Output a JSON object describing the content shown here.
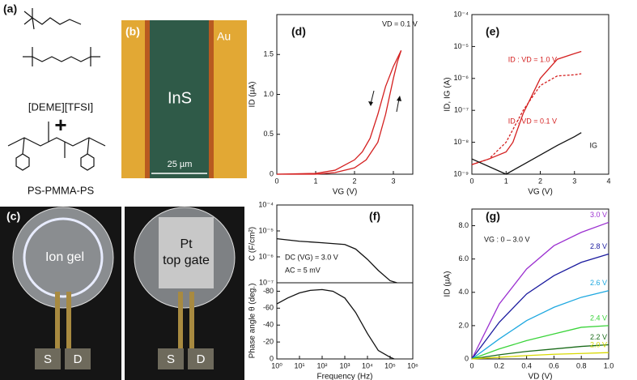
{
  "figure": {
    "panel_a": {
      "label": "(a)",
      "ionic_liquid": "[DEME][TFSI]",
      "plus": "+",
      "polymer": "PS-PMMA-PS"
    },
    "panel_b": {
      "label": "(b)",
      "material": "InS",
      "electrode": "Au",
      "scale": "25 µm"
    },
    "panel_c": {
      "label": "(c)",
      "left_text": "Ion gel",
      "right_text_1": "Pt",
      "right_text_2": "top gate",
      "source": "S",
      "drain": "D"
    }
  },
  "chart_data": [
    {
      "type": "line",
      "panel_label": "(d)",
      "annotations": [
        "VD = 0.1 V"
      ],
      "xlabel": "VG (V)",
      "ylabel": "ID (µA)",
      "xlim": [
        0,
        3.5
      ],
      "xticks": [
        0,
        1,
        2,
        3
      ],
      "ylim": [
        0,
        2
      ],
      "yticks": [
        0,
        0.5,
        {
          "value": 1,
          "label": "1.0"
        },
        1.5
      ],
      "series": [
        {
          "color": "#d42020",
          "x": [
            0,
            1,
            1.5,
            2,
            2.3,
            2.6,
            2.8,
            3.0,
            3.1,
            3.2
          ],
          "values": [
            0,
            0,
            0.02,
            0.08,
            0.18,
            0.4,
            0.75,
            1.2,
            1.4,
            1.55
          ]
        },
        {
          "color": "#d42020",
          "x": [
            3.2,
            3.0,
            2.8,
            2.6,
            2.4,
            2.2,
            2.0,
            1.5,
            1.0,
            0
          ],
          "values": [
            1.55,
            1.35,
            1.1,
            0.75,
            0.45,
            0.28,
            0.18,
            0.05,
            0.01,
            0
          ]
        }
      ]
    },
    {
      "type": "line",
      "panel_label": "(e)",
      "xlabel": "VG (V)",
      "ylabel": "ID, IG (A)",
      "ylog": true,
      "xlim": [
        0,
        4
      ],
      "xticks": [
        0,
        1,
        2,
        3,
        4
      ],
      "ylim": [
        1e-09,
        0.0001
      ],
      "yticks": [
        {
          "value": 1e-09,
          "label": "10⁻⁹"
        },
        {
          "value": 1e-08,
          "label": "10⁻⁸"
        },
        {
          "value": 1e-07,
          "label": "10⁻⁷"
        },
        {
          "value": 1e-06,
          "label": "10⁻⁶"
        },
        {
          "value": 1e-05,
          "label": "10⁻⁵"
        },
        {
          "value": 0.0001,
          "label": "10⁻⁴"
        }
      ],
      "series": [
        {
          "name": "ID : VD = 1.0 V",
          "color": "#d42020",
          "x": [
            0,
            0.5,
            1,
            1.2,
            1.5,
            2,
            2.5,
            3,
            3.2
          ],
          "values": [
            2e-09,
            3e-09,
            5e-09,
            1e-08,
            8e-08,
            1e-06,
            4e-06,
            6e-06,
            7e-06
          ]
        },
        {
          "name": "ID : VD = 0.1 V",
          "color": "#d42020",
          "dash": true,
          "x": [
            0,
            0.5,
            1,
            1.5,
            2,
            2.5,
            3,
            3.2
          ],
          "values": [
            2e-09,
            3e-09,
            1e-08,
            1e-07,
            6e-07,
            1.2e-06,
            1.3e-06,
            1.4e-06
          ]
        },
        {
          "name": "IG",
          "color": "#111111",
          "x": [
            0,
            1,
            1.5,
            2,
            2.5,
            3,
            3.2
          ],
          "values": [
            3e-09,
            1e-09,
            2e-09,
            4e-09,
            8e-09,
            1.5e-08,
            2e-08
          ]
        }
      ]
    },
    {
      "type": "line",
      "panel_label": "(f)",
      "annotations": [
        "DC (VG) = 3.0 V",
        "AC = 5 mV"
      ],
      "ylabel": "C (F/cm²)",
      "xlog": true,
      "ylog": true,
      "xlim": [
        1,
        1000000
      ],
      "ylim": [
        1e-07,
        0.0001
      ],
      "yticks": [
        {
          "value": 1e-07,
          "label": "10⁻⁷"
        },
        {
          "value": 1e-06,
          "label": "10⁻⁶"
        },
        {
          "value": 1e-05,
          "label": "10⁻⁵"
        },
        {
          "value": 0.0001,
          "label": "10⁻⁴"
        }
      ],
      "series": [
        {
          "color": "#111111",
          "x": [
            1,
            10,
            100,
            1000,
            3000,
            10000,
            30000,
            100000,
            200000
          ],
          "values": [
            5e-06,
            4e-06,
            3.5e-06,
            3e-06,
            2e-06,
            8e-07,
            3e-07,
            1.2e-07,
            1e-07
          ]
        }
      ]
    },
    {
      "type": "line",
      "xlabel": "Frequency (Hz)",
      "ylabel": "Phase angle θ (deg.)",
      "xlog": true,
      "xlim": [
        1,
        1000000
      ],
      "xticks": [
        {
          "value": 1,
          "label": "10⁰"
        },
        {
          "value": 10,
          "label": "10¹"
        },
        {
          "value": 100,
          "label": "10²"
        },
        {
          "value": 1000,
          "label": "10³"
        },
        {
          "value": 10000,
          "label": "10⁴"
        },
        {
          "value": 100000,
          "label": "10⁵"
        },
        {
          "value": 1000000,
          "label": "10⁶"
        }
      ],
      "ylim": [
        0,
        -90
      ],
      "yticks": [
        0,
        -20,
        -40,
        -60,
        -80
      ],
      "series": [
        {
          "color": "#111111",
          "x": [
            1,
            3,
            10,
            30,
            100,
            300,
            1000,
            3000,
            10000,
            30000,
            100000,
            150000
          ],
          "values": [
            -65,
            -72,
            -78,
            -81,
            -82,
            -80,
            -72,
            -55,
            -30,
            -10,
            -2,
            0
          ]
        }
      ]
    },
    {
      "type": "line",
      "panel_label": "(g)",
      "annotations": [
        "VG : 0 – 3.0 V"
      ],
      "xlabel": "VD (V)",
      "ylabel": "ID (µA)",
      "xlim": [
        0,
        1
      ],
      "xticks": [
        0,
        0.2,
        0.4,
        0.6,
        0.8,
        {
          "value": 1,
          "label": "1.0"
        }
      ],
      "ylim": [
        0,
        9
      ],
      "yticks": [
        0,
        {
          "value": 2,
          "label": "2.0"
        },
        {
          "value": 4,
          "label": "4.0"
        },
        {
          "value": 6,
          "label": "6.0"
        },
        {
          "value": 8,
          "label": "8.0"
        }
      ],
      "x": [
        0,
        0.2,
        0.4,
        0.6,
        0.8,
        1.0
      ],
      "series": [
        {
          "name": "3.0 V",
          "color": "#9b30d0",
          "values": [
            0,
            3.3,
            5.4,
            6.8,
            7.6,
            8.2
          ]
        },
        {
          "name": "2.8 V",
          "color": "#1a1a9e",
          "values": [
            0,
            2.2,
            3.9,
            5.0,
            5.8,
            6.3
          ]
        },
        {
          "name": "2.6 V",
          "color": "#1ea8e0",
          "values": [
            0,
            1.2,
            2.3,
            3.1,
            3.7,
            4.1
          ]
        },
        {
          "name": "2.4 V",
          "color": "#3ad43a",
          "values": [
            0,
            0.6,
            1.1,
            1.5,
            1.9,
            2.0
          ]
        },
        {
          "name": "2.2 V",
          "color": "#1a6b1a",
          "values": [
            0,
            0.25,
            0.45,
            0.6,
            0.75,
            0.85
          ]
        },
        {
          "name": "2.0 V",
          "color": "#d8d800",
          "values": [
            0,
            0.1,
            0.2,
            0.28,
            0.33,
            0.38
          ]
        }
      ]
    }
  ]
}
